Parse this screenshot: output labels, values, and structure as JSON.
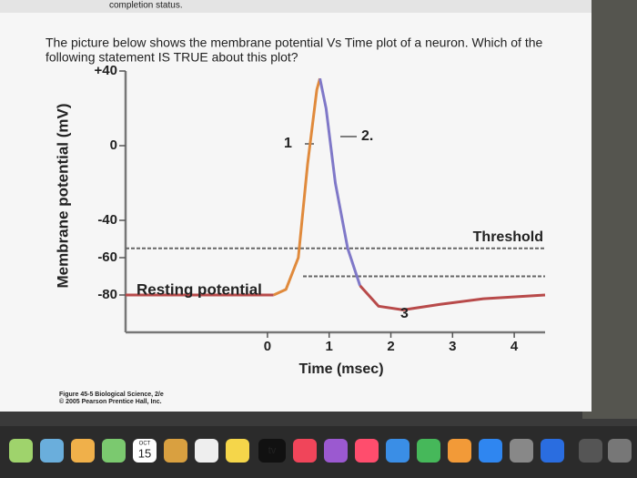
{
  "top_bar": "completion status.",
  "question_lines": [
    "The picture below shows the membrane potential  Vs Time plot of a neuron. Which of the",
    "following statement IS TRUE about this plot?"
  ],
  "figure_credit": [
    "Figure 45-5 Biological Science, 2/e",
    "© 2005 Pearson Prentice Hall, Inc."
  ],
  "dock": {
    "calendar_month": "OCT",
    "calendar_day": "15",
    "tv": "tv"
  },
  "chart_data": {
    "type": "line",
    "ylabel": "Membrane potential (mV)",
    "xlabel": "Time (msec)",
    "xlim": [
      -2.3,
      4.5
    ],
    "xticks": [
      0,
      1,
      2,
      3,
      4
    ],
    "ylim": [
      -100,
      40
    ],
    "yticks": [
      {
        "value": 40,
        "label": "+40"
      },
      0,
      -40,
      -60,
      -80
    ],
    "series": [
      {
        "color": "#b84a4a",
        "x": [
          -2.3,
          0.1
        ],
        "values": [
          -80,
          -80
        ]
      },
      {
        "color": "#e08a3c",
        "x": [
          0.1,
          0.3,
          0.5,
          0.65,
          0.8,
          0.85
        ],
        "values": [
          -80,
          -77,
          -60,
          -10,
          30,
          36
        ]
      },
      {
        "color": "#7f78c8",
        "x": [
          0.85,
          0.95,
          1.1,
          1.3,
          1.5
        ],
        "values": [
          36,
          20,
          -20,
          -55,
          -75
        ]
      },
      {
        "color": "#b84a4a",
        "x": [
          1.5,
          1.8,
          2.2,
          2.8,
          3.5,
          4.5
        ],
        "values": [
          -75,
          -86,
          -88,
          -85,
          -82,
          -80
        ]
      }
    ],
    "reference_lines": [
      -55,
      -70
    ],
    "threshold_label": "Threshold",
    "resting_label": "Resting potential",
    "annotations": [
      "1",
      "2.",
      "3"
    ]
  }
}
